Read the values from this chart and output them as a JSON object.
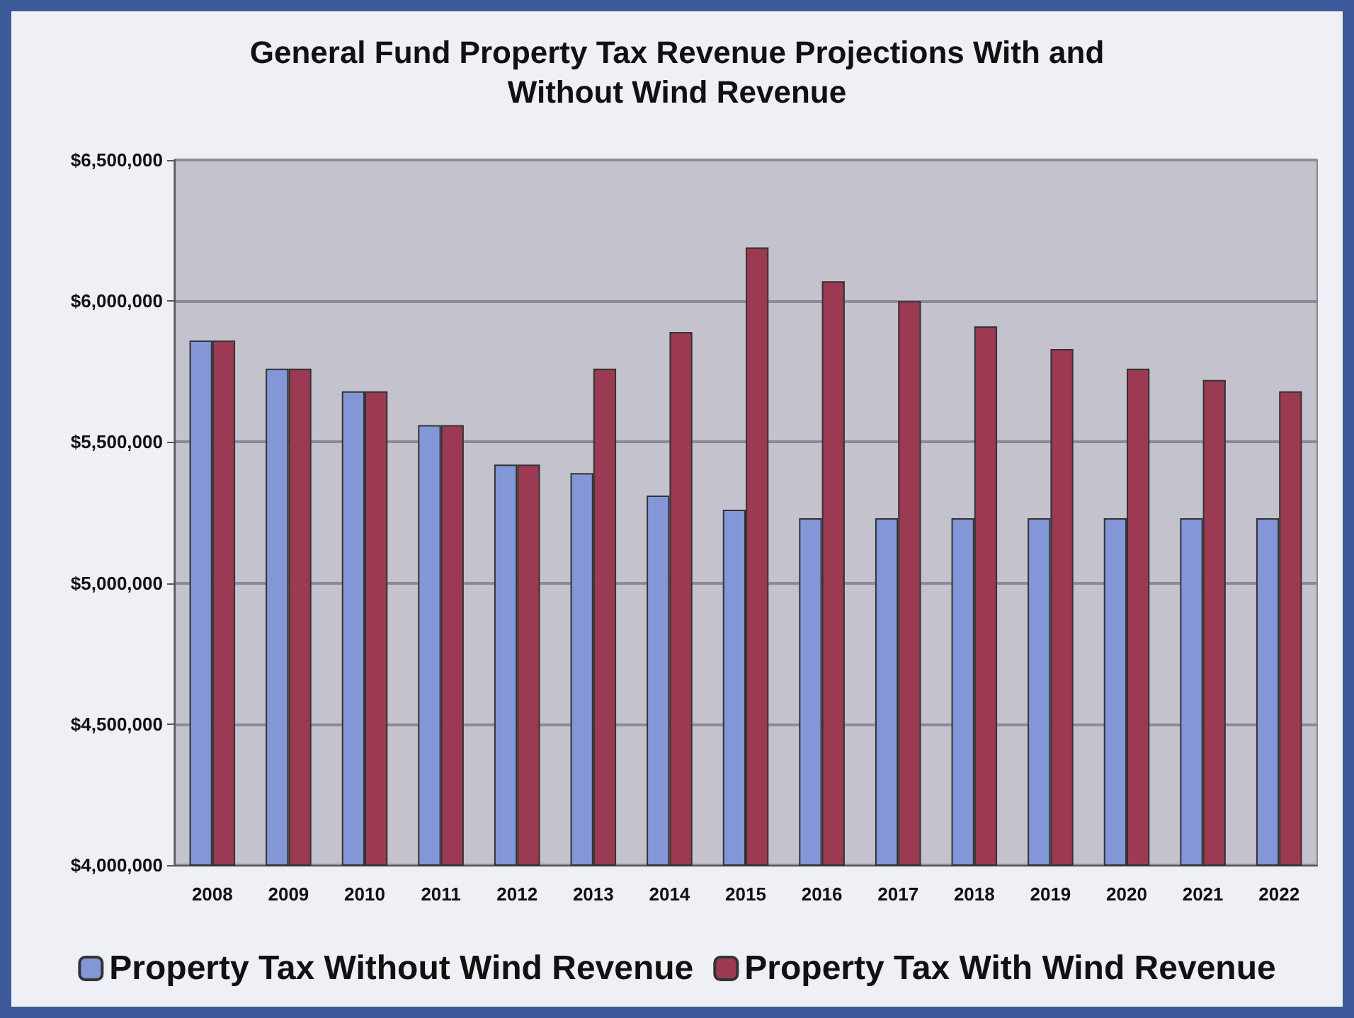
{
  "chart_data": {
    "type": "bar",
    "title": "General Fund Property Tax Revenue Projections With and\nWithout Wind Revenue",
    "categories": [
      "2008",
      "2009",
      "2010",
      "2011",
      "2012",
      "2013",
      "2014",
      "2015",
      "2016",
      "2017",
      "2018",
      "2019",
      "2020",
      "2021",
      "2022"
    ],
    "series": [
      {
        "name": "Property Tax Without Wind Revenue",
        "color": "#8296d8",
        "values": [
          5860000,
          5760000,
          5680000,
          5560000,
          5420000,
          5390000,
          5310000,
          5260000,
          5230000,
          5230000,
          5230000,
          5230000,
          5230000,
          5230000,
          5230000
        ]
      },
      {
        "name": "Property Tax With Wind Revenue",
        "color": "#9b3a52",
        "values": [
          5860000,
          5760000,
          5680000,
          5560000,
          5420000,
          5760000,
          5890000,
          6190000,
          6070000,
          6000000,
          5910000,
          5830000,
          5760000,
          5720000,
          5680000
        ]
      }
    ],
    "ylim": [
      4000000,
      6500000
    ],
    "yticks": [
      {
        "value": 4000000,
        "label": "$4,000,000"
      },
      {
        "value": 4500000,
        "label": "$4,500,000"
      },
      {
        "value": 5000000,
        "label": "$5,000,000"
      },
      {
        "value": 5500000,
        "label": "$5,500,000"
      },
      {
        "value": 6000000,
        "label": "$6,000,000"
      },
      {
        "value": 6500000,
        "label": "$6,500,000"
      }
    ],
    "grid": "y",
    "legend": "bottom"
  }
}
